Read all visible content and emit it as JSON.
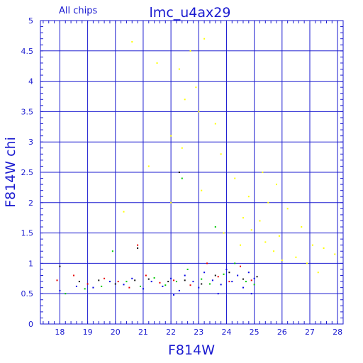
{
  "chart_data": {
    "type": "scatter",
    "title": "lmc_u4ax29",
    "subtitle": "All chips",
    "xlabel": "F814W",
    "ylabel": "F814W chi",
    "xlim": [
      17.3,
      28.2
    ],
    "ylim": [
      0,
      5
    ],
    "x_ticks": [
      "18",
      "19",
      "20",
      "21",
      "22",
      "23",
      "24",
      "25",
      "26",
      "27",
      "28"
    ],
    "y_ticks": [
      "0",
      "0.5",
      "1",
      "1.5",
      "2",
      "2.5",
      "3",
      "3.5",
      "4",
      "4.5",
      "5"
    ],
    "grid": true,
    "colors": {
      "axis": "#1b1bd0",
      "grid": "#1b1bd0",
      "text": "#1b1bd0",
      "chip1": "#0000e6",
      "chip2": "#00c800",
      "chip3": "#e60000",
      "chip4": "#111111",
      "extra": "#ffff00"
    },
    "series": [
      {
        "color_key": "chip1",
        "values": [
          [
            18.0,
            0.55
          ],
          [
            18.6,
            0.62
          ],
          [
            19.2,
            0.6
          ],
          [
            19.8,
            0.7
          ],
          [
            20.3,
            0.65
          ],
          [
            20.6,
            0.75
          ],
          [
            21.0,
            0.58
          ],
          [
            21.3,
            0.7
          ],
          [
            21.7,
            0.62
          ],
          [
            22.0,
            0.75
          ],
          [
            22.3,
            0.55
          ],
          [
            22.5,
            0.8
          ],
          [
            22.8,
            0.7
          ],
          [
            23.0,
            0.6
          ],
          [
            23.2,
            0.85
          ],
          [
            23.5,
            0.72
          ],
          [
            23.8,
            0.65
          ],
          [
            24.0,
            0.9
          ],
          [
            24.2,
            0.7
          ],
          [
            24.4,
            0.8
          ],
          [
            24.6,
            0.6
          ],
          [
            24.8,
            0.85
          ],
          [
            25.0,
            0.75
          ],
          [
            22.1,
            0.48
          ],
          [
            23.7,
            0.5
          ],
          [
            24.9,
            0.5
          ]
        ]
      },
      {
        "color_key": "chip2",
        "values": [
          [
            18.2,
            0.5
          ],
          [
            18.9,
            0.58
          ],
          [
            19.5,
            0.62
          ],
          [
            19.9,
            1.2
          ],
          [
            20.4,
            0.7
          ],
          [
            20.9,
            0.62
          ],
          [
            21.4,
            0.76
          ],
          [
            21.8,
            0.64
          ],
          [
            22.2,
            0.7
          ],
          [
            22.6,
            0.9
          ],
          [
            23.1,
            0.74
          ],
          [
            23.4,
            0.66
          ],
          [
            23.9,
            0.82
          ],
          [
            24.3,
            1.0
          ],
          [
            24.7,
            0.7
          ],
          [
            25.0,
            0.65
          ],
          [
            22.4,
            2.4
          ],
          [
            23.6,
            1.6
          ]
        ]
      },
      {
        "color_key": "chip3",
        "values": [
          [
            17.9,
            0.72
          ],
          [
            18.5,
            0.8
          ],
          [
            19.0,
            0.66
          ],
          [
            19.6,
            0.75
          ],
          [
            20.1,
            0.7
          ],
          [
            20.5,
            0.6
          ],
          [
            21.1,
            0.8
          ],
          [
            21.6,
            0.68
          ],
          [
            22.1,
            0.72
          ],
          [
            22.7,
            0.64
          ],
          [
            23.3,
            1.0
          ],
          [
            23.7,
            0.78
          ],
          [
            24.1,
            0.7
          ],
          [
            24.5,
            0.95
          ],
          [
            24.9,
            0.72
          ],
          [
            20.8,
            1.3
          ]
        ]
      },
      {
        "color_key": "chip4",
        "values": [
          [
            18.0,
            0.95
          ],
          [
            18.7,
            0.7
          ],
          [
            19.4,
            0.72
          ],
          [
            20.0,
            0.66
          ],
          [
            20.7,
            0.72
          ],
          [
            21.2,
            0.74
          ],
          [
            21.9,
            0.7
          ],
          [
            22.5,
            0.72
          ],
          [
            23.1,
            0.66
          ],
          [
            23.6,
            0.8
          ],
          [
            24.1,
            0.85
          ],
          [
            24.6,
            0.74
          ],
          [
            25.1,
            0.78
          ],
          [
            22.3,
            2.5
          ],
          [
            20.8,
            1.25
          ]
        ]
      },
      {
        "color_key": "extra",
        "values": [
          [
            20.6,
            4.65
          ],
          [
            22.3,
            4.2
          ],
          [
            22.7,
            4.5
          ],
          [
            23.2,
            4.7
          ],
          [
            22.5,
            3.7
          ],
          [
            23.0,
            3.5
          ],
          [
            23.6,
            3.3
          ],
          [
            22.0,
            3.1
          ],
          [
            22.4,
            2.9
          ],
          [
            23.8,
            2.8
          ],
          [
            24.3,
            2.4
          ],
          [
            25.3,
            2.5
          ],
          [
            25.8,
            2.3
          ],
          [
            24.8,
            2.1
          ],
          [
            25.5,
            2.0
          ],
          [
            26.2,
            1.9
          ],
          [
            26.7,
            1.6
          ],
          [
            27.1,
            1.3
          ],
          [
            27.5,
            1.25
          ],
          [
            27.9,
            1.15
          ],
          [
            26.5,
            1.1
          ],
          [
            25.9,
            1.45
          ],
          [
            25.2,
            1.7
          ],
          [
            24.6,
            1.75
          ],
          [
            24.9,
            1.55
          ],
          [
            25.4,
            1.35
          ],
          [
            25.7,
            1.2
          ],
          [
            26.0,
            1.05
          ],
          [
            24.5,
            1.3
          ],
          [
            23.9,
            1.5
          ],
          [
            21.2,
            2.6
          ],
          [
            20.3,
            1.85
          ],
          [
            22.0,
            2.0
          ],
          [
            23.1,
            2.2
          ],
          [
            26.9,
            1.0
          ],
          [
            27.3,
            0.85
          ],
          [
            21.5,
            4.3
          ],
          [
            22.9,
            3.9
          ]
        ]
      }
    ]
  }
}
